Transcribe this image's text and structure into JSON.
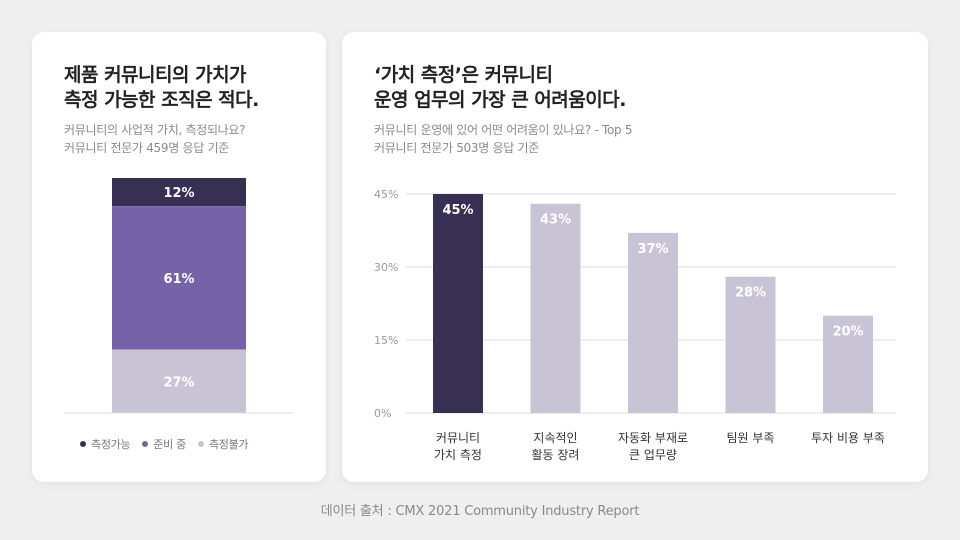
{
  "colors": {
    "dark": "#373053",
    "purple": "#7562a9",
    "light": "#c8c4d6",
    "grid": "#dddddd",
    "axis_text": "#999999"
  },
  "left": {
    "title_lines": [
      "제품 커뮤니티의 가치가",
      "측정 가능한 조직은 적다."
    ],
    "subtitle_lines": [
      "커뮤니티의 사업적 가치, 측정되나요?",
      "커뮤니티 전문가 459명 응답 기준"
    ]
  },
  "right": {
    "title_lines": [
      "‘가치 측정’은 커뮤니티",
      "운영 업무의 가장 큰 어려움이다."
    ],
    "subtitle_lines": [
      "커뮤니티 운영에 있어 어떤 어려움이 있나요? - Top 5",
      "커뮤니티 전문가 503명 응답 기준"
    ]
  },
  "source": "데이터 출처 : CMX 2021 Community Industry Report",
  "chart_data": [
    {
      "type": "bar",
      "stacked": true,
      "series": [
        {
          "name": "측정가능",
          "value": 12,
          "label": "12%",
          "color": "#373053"
        },
        {
          "name": "준비 중",
          "value": 61,
          "label": "61%",
          "color": "#7562a9"
        },
        {
          "name": "측정불가",
          "value": 27,
          "label": "27%",
          "color": "#c8c4d6"
        }
      ],
      "ylim": [
        0,
        100
      ],
      "legend": "bottom"
    },
    {
      "type": "bar",
      "categories": [
        [
          "커뮤니티",
          "가치 측정"
        ],
        [
          "지속적인",
          "활동 장려"
        ],
        [
          "자동화 부재로",
          "큰 업무량"
        ],
        [
          "팀원 부족"
        ],
        [
          "투자 비용 부족"
        ]
      ],
      "values": [
        45,
        43,
        37,
        28,
        20
      ],
      "labels": [
        "45%",
        "43%",
        "37%",
        "28%",
        "20%"
      ],
      "highlight_index": 0,
      "ylim": [
        0,
        45
      ],
      "yticks": [
        0,
        15,
        30,
        45
      ],
      "ytick_labels": [
        "0%",
        "15%",
        "30%",
        "45%"
      ],
      "grid": true
    }
  ]
}
